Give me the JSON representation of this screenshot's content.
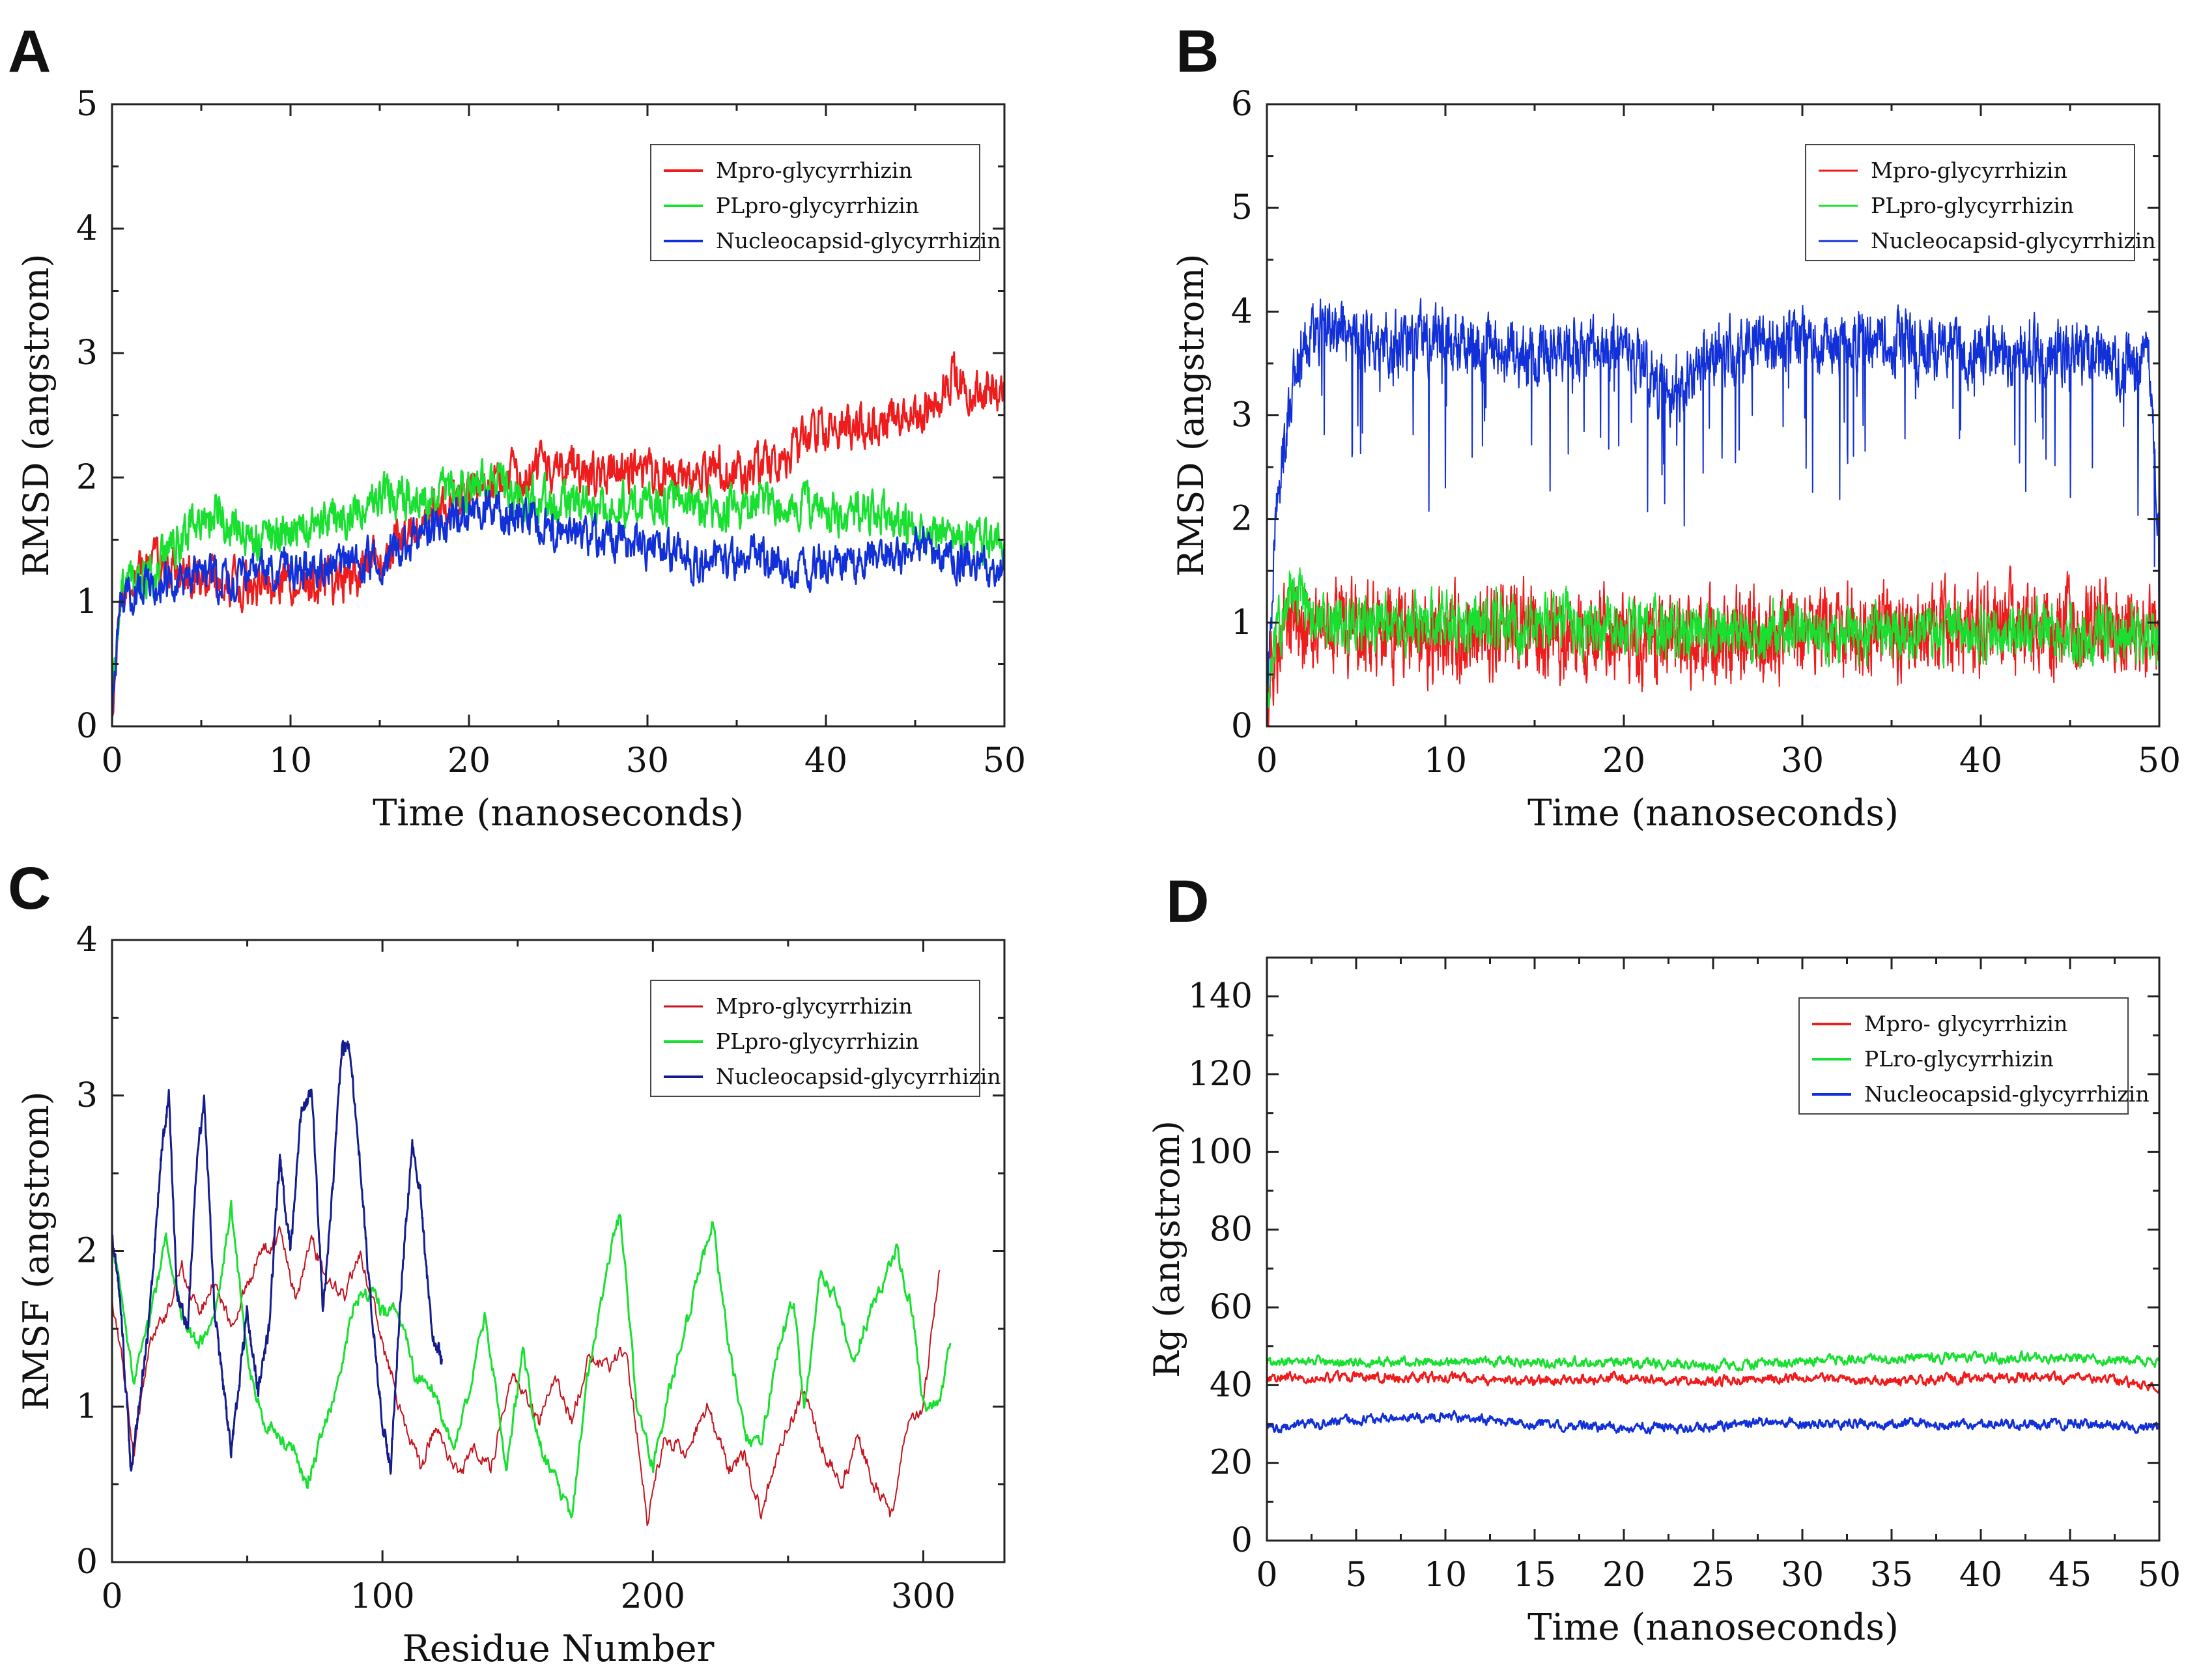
{
  "figure": {
    "panels": [
      "A",
      "B",
      "C",
      "D"
    ]
  },
  "colors": {
    "red": "#ee1c1c",
    "green": "#19e030",
    "blue": "#1230d8",
    "navy": "#141c8e",
    "darkred": "#c4141e"
  },
  "chart_data": [
    {
      "panel": "A",
      "type": "line",
      "title": "",
      "xlabel": "Time (nanoseconds)",
      "ylabel": "RMSD (angstrom)",
      "xlim": [
        0,
        50
      ],
      "ylim": [
        0,
        5
      ],
      "xticks": [
        0,
        10,
        20,
        30,
        40,
        50
      ],
      "yticks": [
        0,
        1,
        2,
        3,
        4,
        5
      ],
      "legend_position": "top-right",
      "series": [
        {
          "name": "Mpro-glycyrrhizin",
          "color": "#ee1c1c",
          "x": [
            0,
            0.5,
            2,
            5,
            8,
            10,
            13,
            15,
            18,
            21,
            24,
            27,
            30,
            33,
            36,
            38,
            40,
            42,
            44,
            46,
            47,
            48,
            50
          ],
          "y": [
            0.1,
            1.1,
            1.3,
            1.2,
            1.1,
            1.2,
            1.15,
            1.35,
            1.75,
            2.0,
            2.05,
            2.05,
            2.0,
            2.05,
            2.05,
            2.2,
            2.4,
            2.4,
            2.45,
            2.6,
            2.8,
            2.7,
            2.7
          ],
          "noise": 0.14,
          "lw": 3
        },
        {
          "name": "PLpro-glycyrrhizin",
          "color": "#19e030",
          "x": [
            0,
            0.5,
            2,
            4,
            6,
            8,
            10,
            13,
            15,
            18,
            21,
            24,
            27,
            30,
            33,
            36,
            38,
            40,
            42,
            45,
            48,
            50
          ],
          "y": [
            0.1,
            1.1,
            1.2,
            1.55,
            1.7,
            1.5,
            1.55,
            1.7,
            1.85,
            1.9,
            1.95,
            1.8,
            1.75,
            1.8,
            1.75,
            1.75,
            1.8,
            1.75,
            1.7,
            1.6,
            1.5,
            1.5
          ],
          "noise": 0.14,
          "lw": 3
        },
        {
          "name": "Nucleocapsid-glycyrrhizin",
          "color": "#1230d8",
          "x": [
            0,
            0.5,
            2,
            5,
            8,
            10,
            13,
            15,
            18,
            21,
            23,
            26,
            28,
            30,
            33,
            36,
            38,
            40,
            43,
            46,
            48,
            50
          ],
          "y": [
            0.1,
            1.0,
            1.15,
            1.2,
            1.2,
            1.3,
            1.3,
            1.35,
            1.6,
            1.75,
            1.65,
            1.55,
            1.5,
            1.45,
            1.3,
            1.35,
            1.3,
            1.3,
            1.4,
            1.4,
            1.3,
            1.3
          ],
          "noise": 0.13,
          "lw": 3
        }
      ]
    },
    {
      "panel": "B",
      "type": "line",
      "title": "",
      "xlabel": "Time (nanoseconds)",
      "ylabel": "RMSD (angstrom)",
      "xlim": [
        0,
        50
      ],
      "ylim": [
        0,
        6
      ],
      "xticks": [
        0,
        10,
        20,
        30,
        40,
        50
      ],
      "yticks": [
        0,
        1,
        2,
        3,
        4,
        5,
        6
      ],
      "legend_position": "top-right",
      "series": [
        {
          "name": "Nucleocapsid-glycyrrhizin",
          "color": "#1230d8",
          "x": [
            0,
            0.5,
            1.5,
            3,
            6,
            10,
            15,
            20,
            22.5,
            25,
            30,
            35,
            40,
            45,
            49.5,
            50
          ],
          "y": [
            0.3,
            2.0,
            3.5,
            3.8,
            3.7,
            3.7,
            3.6,
            3.65,
            3.2,
            3.6,
            3.7,
            3.7,
            3.6,
            3.6,
            3.5,
            1.8
          ],
          "noise": 0.22,
          "lw": 2
        },
        {
          "name": "Mpro-glycyrrhizin",
          "color": "#ee1c1c",
          "x": [
            0,
            0.5,
            1.5,
            3,
            10,
            20,
            30,
            40,
            50
          ],
          "y": [
            0.3,
            0.8,
            1.0,
            0.95,
            0.9,
            0.85,
            0.9,
            0.95,
            0.95
          ],
          "noise": 0.32,
          "lw": 2
        },
        {
          "name": "PLpro-glycyrrhizin",
          "color": "#19e030",
          "x": [
            0,
            0.5,
            1.5,
            3,
            10,
            20,
            30,
            40,
            50
          ],
          "y": [
            0.3,
            0.9,
            1.3,
            1.0,
            1.0,
            0.95,
            0.9,
            0.9,
            0.9
          ],
          "noise": 0.2,
          "lw": 2
        }
      ],
      "legend_order": [
        "Mpro-glycyrrhizin",
        "PLpro-glycyrrhizin",
        "Nucleocapsid-glycyrrhizin"
      ]
    },
    {
      "panel": "C",
      "type": "line",
      "title": "",
      "xlabel": "Residue Number",
      "ylabel": "RMSF (angstrom)",
      "xlim": [
        0,
        330
      ],
      "ylim": [
        0,
        4
      ],
      "xticks": [
        0,
        100,
        200,
        300
      ],
      "yticks": [
        0,
        1,
        2,
        3,
        4
      ],
      "legend_position": "top-right",
      "series": [
        {
          "name": "Mpro-glycyrrhizin",
          "color": "#c4141e",
          "x": [
            0,
            3,
            8,
            14,
            20,
            26,
            32,
            38,
            44,
            50,
            56,
            62,
            68,
            74,
            80,
            86,
            92,
            100,
            108,
            114,
            120,
            128,
            134,
            140,
            148,
            152,
            158,
            164,
            170,
            176,
            184,
            190,
            198,
            204,
            212,
            220,
            228,
            234,
            240,
            248,
            256,
            262,
            270,
            276,
            282,
            288,
            294,
            300,
            306
          ],
          "y": [
            1.7,
            1.4,
            0.7,
            1.4,
            1.6,
            1.9,
            1.6,
            1.8,
            1.5,
            1.8,
            2.0,
            2.1,
            1.7,
            2.05,
            1.8,
            1.7,
            2.0,
            1.4,
            0.9,
            0.6,
            0.9,
            0.55,
            0.75,
            0.6,
            1.25,
            1.1,
            0.9,
            1.2,
            0.9,
            1.3,
            1.25,
            1.4,
            0.25,
            0.8,
            0.7,
            1.0,
            0.6,
            0.7,
            0.3,
            0.8,
            1.1,
            0.75,
            0.5,
            0.8,
            0.5,
            0.3,
            0.85,
            1.0,
            1.9
          ],
          "noise": 0.04,
          "lw": 2
        },
        {
          "name": "PLpro-glycyrrhizin",
          "color": "#19e030",
          "x": [
            0,
            4,
            8,
            14,
            20,
            26,
            32,
            38,
            44,
            50,
            56,
            62,
            68,
            72,
            78,
            84,
            90,
            96,
            100,
            106,
            112,
            120,
            126,
            132,
            138,
            146,
            152,
            158,
            166,
            170,
            176,
            182,
            188,
            194,
            200,
            206,
            212,
            218,
            222,
            228,
            234,
            240,
            246,
            252,
            256,
            262,
            268,
            274,
            278,
            284,
            290,
            296,
            300,
            306,
            310
          ],
          "y": [
            2.1,
            1.6,
            1.15,
            1.55,
            2.1,
            1.55,
            1.4,
            1.55,
            2.3,
            1.3,
            0.9,
            0.8,
            0.7,
            0.5,
            0.85,
            1.15,
            1.7,
            1.75,
            1.6,
            1.6,
            1.2,
            1.1,
            0.7,
            1.1,
            1.6,
            0.6,
            1.35,
            0.75,
            0.45,
            0.3,
            1.2,
            1.8,
            2.25,
            1.0,
            0.6,
            1.1,
            1.5,
            1.9,
            2.2,
            1.4,
            0.8,
            0.75,
            1.35,
            1.7,
            1.0,
            1.85,
            1.7,
            1.25,
            1.5,
            1.75,
            2.0,
            1.6,
            1.0,
            1.0,
            1.4
          ],
          "noise": 0.04,
          "lw": 3
        },
        {
          "name": "Nucleocapsid-glycyrrhizin",
          "color": "#141c8e",
          "x": [
            0,
            3,
            7,
            10,
            14,
            18,
            21,
            24,
            28,
            31,
            34,
            38,
            44,
            50,
            54,
            58,
            62,
            66,
            70,
            74,
            78,
            82,
            85,
            88,
            92,
            96,
            100,
            103,
            107,
            111,
            114,
            118,
            122
          ],
          "y": [
            2.1,
            1.7,
            0.6,
            1.0,
            1.6,
            2.6,
            3.0,
            1.7,
            1.5,
            2.5,
            3.0,
            1.6,
            0.7,
            1.6,
            1.1,
            1.5,
            2.6,
            2.0,
            2.9,
            3.0,
            1.6,
            2.5,
            3.3,
            3.3,
            2.5,
            1.6,
            0.9,
            0.6,
            1.8,
            2.7,
            2.4,
            1.5,
            1.3
          ],
          "noise": 0.04,
          "lw": 3
        }
      ],
      "legend_order": [
        "Mpro-glycyrrhizin",
        "PLpro-glycyrrhizin",
        "Nucleocapsid-glycyrrhizin"
      ]
    },
    {
      "panel": "D",
      "type": "line",
      "title": "",
      "xlabel": "Time (nanoseconds)",
      "ylabel": "Rg (angstrom)",
      "xlim": [
        0,
        50
      ],
      "ylim": [
        0,
        150
      ],
      "xticks": [
        0,
        5,
        10,
        15,
        20,
        25,
        30,
        35,
        40,
        45,
        50
      ],
      "yticks": [
        0,
        20,
        40,
        60,
        80,
        100,
        120,
        140
      ],
      "legend_position": "top-right",
      "series": [
        {
          "name": "Mpro- glycyrrhizin",
          "color": "#ee1c1c",
          "x": [
            0,
            5,
            10,
            15,
            20,
            25,
            30,
            35,
            40,
            45,
            50
          ],
          "y": [
            42,
            42,
            42,
            41,
            42,
            41,
            42,
            41,
            42,
            42,
            40
          ],
          "noise": 1.0,
          "lw": 3
        },
        {
          "name": "PLro-glycyrrhizin",
          "color": "#19e030",
          "x": [
            0,
            5,
            10,
            15,
            20,
            25,
            30,
            35,
            40,
            45,
            50
          ],
          "y": [
            46,
            46,
            46,
            46,
            46,
            45,
            46,
            47,
            47,
            47,
            46
          ],
          "noise": 1.0,
          "lw": 3
        },
        {
          "name": "Nucleocapsid-glycyrrhizin",
          "color": "#1230d8",
          "x": [
            0,
            5,
            10,
            15,
            20,
            25,
            28,
            30,
            35,
            40,
            45,
            50
          ],
          "y": [
            29,
            31,
            32,
            30,
            29,
            29,
            31,
            30,
            30,
            30,
            30,
            29
          ],
          "noise": 1.0,
          "lw": 3
        }
      ],
      "legend_order": [
        "Mpro- glycyrrhizin",
        "PLro-glycyrrhizin",
        "Nucleocapsid-glycyrrhizin"
      ]
    }
  ]
}
